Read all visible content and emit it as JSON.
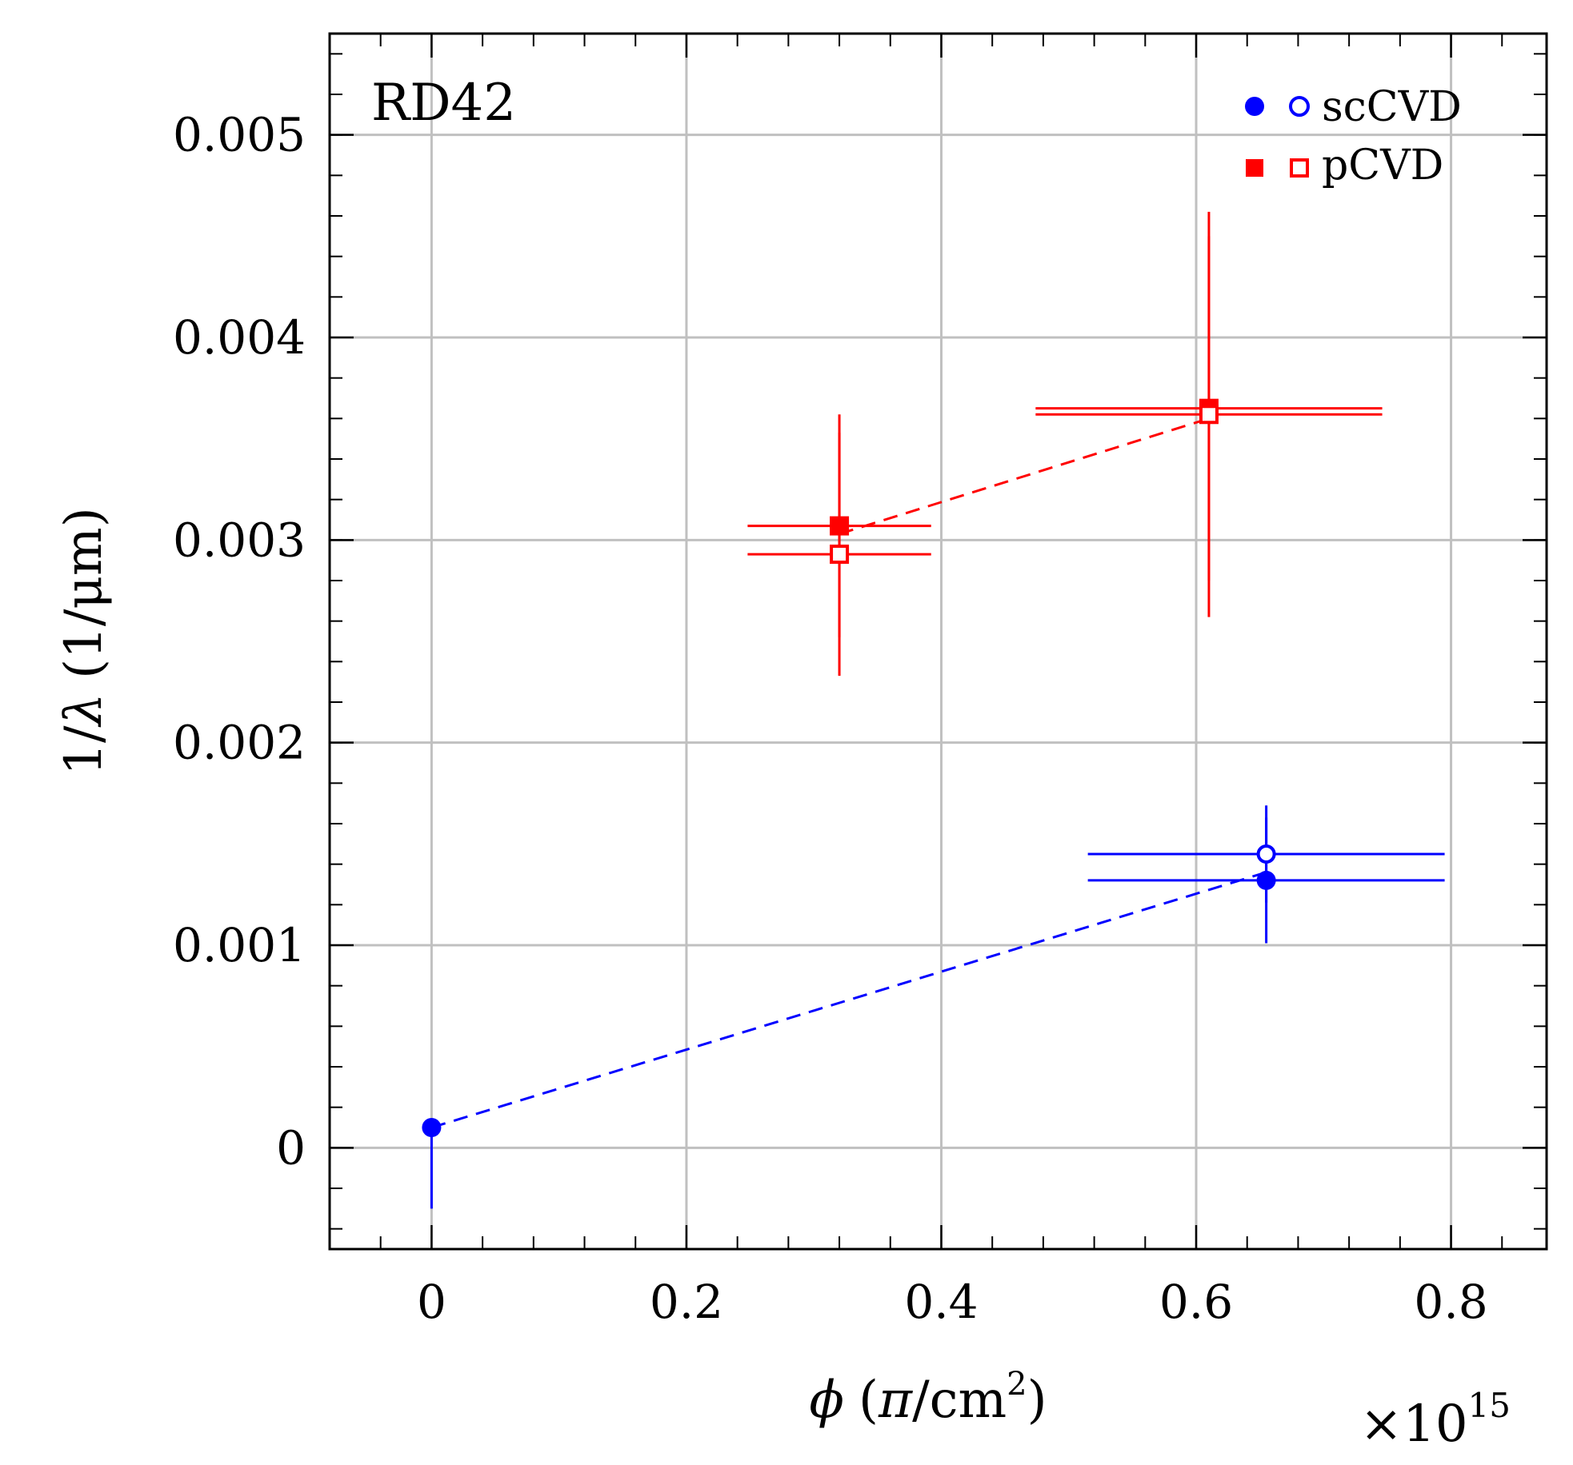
{
  "chart_data": {
    "type": "scatter",
    "title": "",
    "annotation": "RD42",
    "xlabel": {
      "symbol": "ϕ",
      "open": "(",
      "numerator": "π",
      "slash": "/",
      "unit": "cm",
      "exponent": "2",
      "close": ")"
    },
    "ylabel": {
      "prefix": "1/",
      "symbol": "λ",
      "unit": "(1/μm)"
    },
    "x_multiplier": {
      "times": "×",
      "base": "10",
      "exponent": "15"
    },
    "xlim": [
      -0.08,
      0.875
    ],
    "ylim": [
      -0.0005,
      0.0055
    ],
    "x_ticks": [
      {
        "value": 0,
        "label": "0"
      },
      {
        "value": 0.2,
        "label": "0.2"
      },
      {
        "value": 0.4,
        "label": "0.4"
      },
      {
        "value": 0.6,
        "label": "0.6"
      },
      {
        "value": 0.8,
        "label": "0.8"
      }
    ],
    "y_ticks": [
      {
        "value": 0,
        "label": "0"
      },
      {
        "value": 0.001,
        "label": "0.001"
      },
      {
        "value": 0.002,
        "label": "0.002"
      },
      {
        "value": 0.003,
        "label": "0.003"
      },
      {
        "value": 0.004,
        "label": "0.004"
      },
      {
        "value": 0.005,
        "label": "0.005"
      }
    ],
    "x_minor_step": 0.04,
    "y_minor_step": 0.0002,
    "grid": true,
    "legend_position": "top-right",
    "series": [
      {
        "name": "scCVD",
        "color": "#0000ff",
        "marker": "circle",
        "points": [
          {
            "x": 0,
            "y": 0.0001,
            "xerr": 0,
            "yerr": [
              0.0004,
              0
            ],
            "filled": true
          },
          {
            "x": 0.655,
            "y": 0.00132,
            "xerr": 0.14,
            "yerr": 0.00031,
            "filled": true
          },
          {
            "x": 0.655,
            "y": 0.00145,
            "xerr": 0.14,
            "yerr": 0.00024,
            "filled": false
          }
        ],
        "fit_line": {
          "x": [
            0,
            0.655
          ],
          "y": [
            0.0001,
            0.00136
          ]
        }
      },
      {
        "name": "pCVD",
        "color": "#ff0000",
        "marker": "square",
        "points": [
          {
            "x": 0.32,
            "y": 0.00307,
            "xerr": 0.072,
            "yerr": 0.00055,
            "filled": true
          },
          {
            "x": 0.32,
            "y": 0.00293,
            "xerr": 0.072,
            "yerr": 0.0006,
            "filled": false
          },
          {
            "x": 0.61,
            "y": 0.00365,
            "xerr": 0.136,
            "yerr": 0.00085,
            "filled": true
          },
          {
            "x": 0.61,
            "y": 0.00362,
            "xerr": 0.136,
            "yerr": 0.001,
            "filled": false
          }
        ],
        "fit_line": {
          "x": [
            0.32,
            0.61
          ],
          "y": [
            0.00303,
            0.0036
          ]
        }
      }
    ]
  }
}
